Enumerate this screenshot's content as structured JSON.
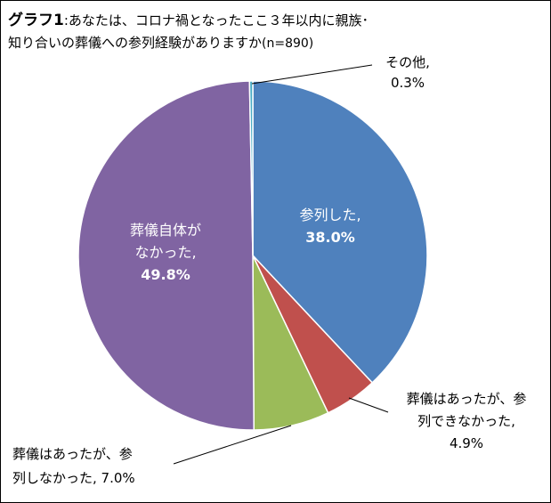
{
  "title": {
    "bold": "グラフ1",
    "text": ":あなたは、コロナ禍となったここ３年以内に親族･知り合いの葬儀への参列経験がありますか",
    "n": "(n=890)"
  },
  "chart_data": {
    "type": "pie",
    "start_angle_deg": 0,
    "direction": "clockwise",
    "slices": [
      {
        "label_lines": [
          "参列した,"
        ],
        "value_label": "38.0%",
        "value": 38.0,
        "color": "#4F81BD",
        "label_color": "#ffffff",
        "label_weight_value": "bold"
      },
      {
        "label_lines": [
          "葬儀はあったが、参",
          "列できなかった,"
        ],
        "value_label": "4.9%",
        "value": 4.9,
        "color": "#C0504D",
        "label_color": "#000000",
        "label_weight_value": "normal"
      },
      {
        "label_lines": [
          "葬儀はあったが、参",
          "列しなかった, 7.0%"
        ],
        "value_label": "",
        "value": 7.0,
        "color": "#9BBB59",
        "label_color": "#000000",
        "label_weight_value": "normal"
      },
      {
        "label_lines": [
          "葬儀自体が",
          "なかった,"
        ],
        "value_label": "49.8%",
        "value": 49.8,
        "color": "#8064A2",
        "label_color": "#ffffff",
        "label_weight_value": "bold"
      },
      {
        "label_lines": [
          "その他,"
        ],
        "value_label": "0.3%",
        "value": 0.3,
        "color": "#4BACC6",
        "label_color": "#000000",
        "label_weight_value": "normal"
      }
    ]
  }
}
